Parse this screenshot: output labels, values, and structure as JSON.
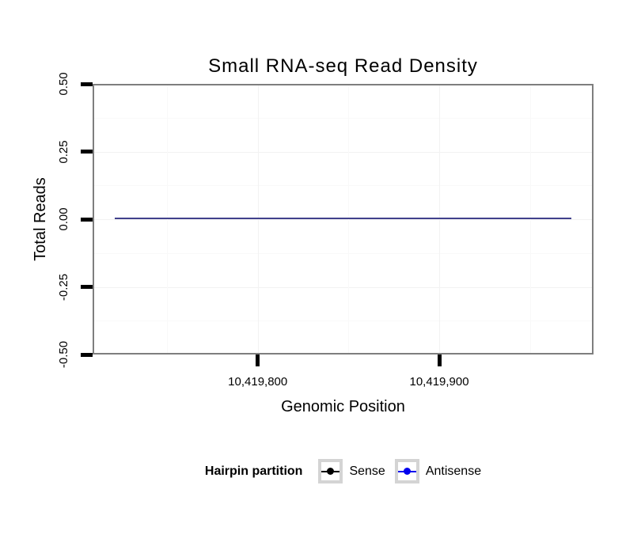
{
  "title": "Small RNA-seq Read Density",
  "axes": {
    "x": {
      "label": "Genomic Position",
      "domain": [
        10419709,
        10419985
      ],
      "ticks": [
        {
          "value": 10419800,
          "label": "10,419,800"
        },
        {
          "value": 10419900,
          "label": "10,419,900"
        }
      ],
      "minor": [
        10419750,
        10419850,
        10419950
      ]
    },
    "y": {
      "label": "Total Reads",
      "domain": [
        -0.5,
        0.5
      ],
      "ticks": [
        {
          "value": 0.5,
          "label": "0.50"
        },
        {
          "value": 0.25,
          "label": "0.25"
        },
        {
          "value": 0.0,
          "label": "0.00"
        },
        {
          "value": -0.25,
          "label": "-0.25"
        },
        {
          "value": -0.5,
          "label": "-0.50"
        }
      ],
      "minor": [
        0.375,
        0.125,
        -0.125,
        -0.375
      ]
    }
  },
  "legend": {
    "title": "Hairpin partition",
    "position": "bottom",
    "items": [
      {
        "label": "Sense",
        "color": "#000000",
        "key_shape": "line-with-point"
      },
      {
        "label": "Antisense",
        "color": "#0000EE",
        "key_shape": "line-with-point"
      }
    ]
  },
  "colors": {
    "panel_border": "#7e7e7e",
    "grid_major": "#f2f2f2",
    "grid_minor": "#f9f9f9",
    "tick_mark": "#000000",
    "combined_line_core": "#07071f",
    "combined_line_edge": "#41418c",
    "legend_key_border": "#d4d4d4",
    "background": "#ffffff"
  },
  "chart_data": {
    "type": "line",
    "title": "Small RNA-seq Read Density",
    "xlabel": "Genomic Position",
    "ylabel": "Total Reads",
    "xlim": [
      10419709,
      10419985
    ],
    "ylim": [
      -0.5,
      0.5
    ],
    "x": [
      10419721,
      10419973
    ],
    "series": [
      {
        "name": "Sense",
        "color": "#000000",
        "values": [
          0,
          0
        ]
      },
      {
        "name": "Antisense",
        "color": "#0000EE",
        "values": [
          0,
          0
        ]
      }
    ],
    "legend_title": "Hairpin partition",
    "legend_position": "bottom",
    "grid": "on",
    "notes": "Both series are constant at 0 reads across the plotted genomic range; they overplot as one dark navy horizontal line at y = 0."
  }
}
